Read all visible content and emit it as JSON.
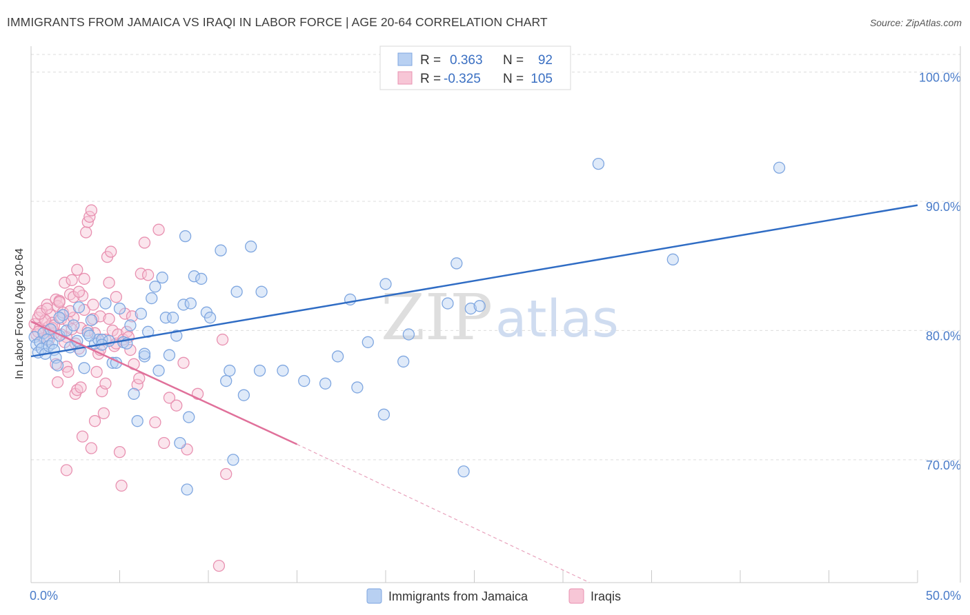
{
  "title": "IMMIGRANTS FROM JAMAICA VS IRAQI IN LABOR FORCE | AGE 20-64 CORRELATION CHART",
  "source": "Source: ZipAtlas.com",
  "watermark": {
    "part1": "ZIP",
    "part2": "atlas"
  },
  "legend_box": {
    "rows": [
      {
        "r_label": "R =",
        "r_value": "0.363",
        "n_label": "N =",
        "n_value": "92",
        "color": "#7ea6e0",
        "fill": "#b8d0f2"
      },
      {
        "r_label": "R =",
        "r_value": "-0.325",
        "n_label": "N =",
        "n_value": "105",
        "color": "#e890b0",
        "fill": "#f7c6d6"
      }
    ]
  },
  "chart_data": {
    "type": "scatter",
    "title": "IMMIGRANTS FROM JAMAICA VS IRAQI IN LABOR FORCE | AGE 20-64 CORRELATION CHART",
    "xlabel": "",
    "ylabel": "In Labor Force | Age 20-64",
    "xlim": [
      0,
      50
    ],
    "ylim": [
      60.5,
      102
    ],
    "x_tick_labels": [
      "0.0%",
      "50.0%"
    ],
    "y_ticks": [
      70,
      80,
      90,
      100
    ],
    "y_tick_labels": [
      "70.0%",
      "80.0%",
      "90.0%",
      "100.0%"
    ],
    "grid": true,
    "legend": "bottom-center",
    "series": [
      {
        "name": "Immigrants from Jamaica",
        "color": "#7ea6e0",
        "fill": "#b8d0f2",
        "trend": {
          "x": [
            0,
            50
          ],
          "y": [
            78.0,
            89.7
          ]
        },
        "points": [
          [
            0.2,
            79.5
          ],
          [
            0.3,
            78.9
          ],
          [
            0.4,
            78.3
          ],
          [
            0.5,
            79.1
          ],
          [
            0.6,
            78.6
          ],
          [
            0.7,
            79.8
          ],
          [
            0.8,
            78.2
          ],
          [
            0.9,
            79.3
          ],
          [
            1.0,
            78.8
          ],
          [
            1.1,
            80.1
          ],
          [
            1.2,
            79.0
          ],
          [
            1.3,
            78.5
          ],
          [
            1.4,
            77.9
          ],
          [
            1.5,
            77.3
          ],
          [
            1.6,
            79.6
          ],
          [
            1.8,
            81.2
          ],
          [
            2.0,
            80.0
          ],
          [
            2.2,
            78.7
          ],
          [
            2.4,
            80.4
          ],
          [
            2.6,
            79.2
          ],
          [
            2.8,
            78.4
          ],
          [
            3.0,
            77.1
          ],
          [
            3.2,
            79.8
          ],
          [
            3.4,
            80.8
          ],
          [
            3.6,
            79.0
          ],
          [
            3.8,
            79.3
          ],
          [
            4.0,
            79.3
          ],
          [
            4.2,
            82.1
          ],
          [
            4.4,
            79.2
          ],
          [
            4.6,
            77.5
          ],
          [
            4.8,
            77.5
          ],
          [
            5.0,
            81.7
          ],
          [
            5.2,
            79.1
          ],
          [
            5.4,
            79.0
          ],
          [
            5.6,
            80.4
          ],
          [
            5.8,
            75.1
          ],
          [
            6.0,
            73.0
          ],
          [
            6.2,
            81.3
          ],
          [
            6.4,
            78.0
          ],
          [
            6.6,
            79.9
          ],
          [
            6.8,
            82.5
          ],
          [
            7.0,
            83.4
          ],
          [
            7.2,
            76.9
          ],
          [
            7.4,
            84.1
          ],
          [
            7.6,
            81.0
          ],
          [
            7.8,
            78.1
          ],
          [
            8.0,
            81.0
          ],
          [
            8.2,
            79.6
          ],
          [
            8.4,
            71.3
          ],
          [
            8.6,
            82.0
          ],
          [
            8.7,
            87.3
          ],
          [
            8.9,
            73.3
          ],
          [
            9.0,
            82.1
          ],
          [
            9.2,
            84.2
          ],
          [
            9.6,
            84.0
          ],
          [
            9.9,
            81.4
          ],
          [
            10.1,
            81.0
          ],
          [
            10.7,
            86.2
          ],
          [
            11.0,
            76.1
          ],
          [
            11.2,
            76.9
          ],
          [
            11.4,
            70.0
          ],
          [
            11.6,
            83.0
          ],
          [
            12.0,
            75.0
          ],
          [
            12.4,
            86.5
          ],
          [
            12.9,
            76.9
          ],
          [
            13.0,
            83.0
          ],
          [
            14.2,
            76.9
          ],
          [
            15.4,
            76.1
          ],
          [
            16.6,
            75.9
          ],
          [
            17.3,
            78.0
          ],
          [
            18.0,
            82.4
          ],
          [
            18.4,
            75.6
          ],
          [
            19.0,
            79.1
          ],
          [
            19.9,
            73.5
          ],
          [
            20.0,
            83.6
          ],
          [
            21.0,
            77.6
          ],
          [
            21.3,
            79.7
          ],
          [
            23.5,
            82.1
          ],
          [
            24.0,
            85.2
          ],
          [
            24.4,
            69.1
          ],
          [
            24.8,
            81.7
          ],
          [
            25.3,
            81.9
          ],
          [
            26.8,
            99.8
          ],
          [
            32.0,
            92.9
          ],
          [
            36.2,
            85.5
          ],
          [
            42.2,
            92.6
          ],
          [
            8.8,
            67.7
          ],
          [
            4.0,
            78.9
          ],
          [
            2.7,
            81.8
          ],
          [
            1.6,
            81.0
          ],
          [
            3.3,
            79.6
          ],
          [
            6.4,
            78.2
          ]
        ]
      },
      {
        "name": "Iraqis",
        "color": "#e890b0",
        "fill": "#f7c6d6",
        "trend": {
          "x": [
            0,
            15
          ],
          "y": [
            80.7,
            71.2
          ]
        },
        "trend_dashed": {
          "x": [
            15,
            31.5
          ],
          "y": [
            71.2,
            60.5
          ]
        },
        "points": [
          [
            0.2,
            80.5
          ],
          [
            0.3,
            79.7
          ],
          [
            0.4,
            81.0
          ],
          [
            0.5,
            80.2
          ],
          [
            0.6,
            81.5
          ],
          [
            0.7,
            79.4
          ],
          [
            0.8,
            80.8
          ],
          [
            0.9,
            82.0
          ],
          [
            1.0,
            80.3
          ],
          [
            1.1,
            81.2
          ],
          [
            1.2,
            80.6
          ],
          [
            1.3,
            79.8
          ],
          [
            1.4,
            82.4
          ],
          [
            1.5,
            81.9
          ],
          [
            1.6,
            82.3
          ],
          [
            1.7,
            80.9
          ],
          [
            1.8,
            81.4
          ],
          [
            1.9,
            83.7
          ],
          [
            2.0,
            79.5
          ],
          [
            2.1,
            80.7
          ],
          [
            2.2,
            82.8
          ],
          [
            2.3,
            83.9
          ],
          [
            2.4,
            81.0
          ],
          [
            2.5,
            79.0
          ],
          [
            2.6,
            84.7
          ],
          [
            2.7,
            78.6
          ],
          [
            2.8,
            80.2
          ],
          [
            2.9,
            82.7
          ],
          [
            3.0,
            81.6
          ],
          [
            3.1,
            87.6
          ],
          [
            3.2,
            88.4
          ],
          [
            3.3,
            88.8
          ],
          [
            3.4,
            89.3
          ],
          [
            3.5,
            80.9
          ],
          [
            3.6,
            79.8
          ],
          [
            3.7,
            76.8
          ],
          [
            3.8,
            78.2
          ],
          [
            3.9,
            81.1
          ],
          [
            4.0,
            75.3
          ],
          [
            4.1,
            73.6
          ],
          [
            4.2,
            75.9
          ],
          [
            4.3,
            85.7
          ],
          [
            4.4,
            83.7
          ],
          [
            4.5,
            86.1
          ],
          [
            4.6,
            80.0
          ],
          [
            4.7,
            78.8
          ],
          [
            4.8,
            79.0
          ],
          [
            4.9,
            79.7
          ],
          [
            5.0,
            70.6
          ],
          [
            5.1,
            68.0
          ],
          [
            5.2,
            79.3
          ],
          [
            5.3,
            81.3
          ],
          [
            5.4,
            79.9
          ],
          [
            5.6,
            78.5
          ],
          [
            5.8,
            77.4
          ],
          [
            6.0,
            75.8
          ],
          [
            6.2,
            84.4
          ],
          [
            6.4,
            86.8
          ],
          [
            6.6,
            84.3
          ],
          [
            7.0,
            72.9
          ],
          [
            7.2,
            87.8
          ],
          [
            7.5,
            71.3
          ],
          [
            7.8,
            74.8
          ],
          [
            8.2,
            74.2
          ],
          [
            8.6,
            77.5
          ],
          [
            8.8,
            70.8
          ],
          [
            9.4,
            75.1
          ],
          [
            10.6,
            61.8
          ],
          [
            10.8,
            79.3
          ],
          [
            11.0,
            68.9
          ],
          [
            2.0,
            77.2
          ],
          [
            2.1,
            76.8
          ],
          [
            1.5,
            76.0
          ],
          [
            1.4,
            77.4
          ],
          [
            2.5,
            75.1
          ],
          [
            2.6,
            75.4
          ],
          [
            2.8,
            75.6
          ],
          [
            3.2,
            80.0
          ],
          [
            1.9,
            79.1
          ],
          [
            3.6,
            73.0
          ],
          [
            2.0,
            69.2
          ],
          [
            3.4,
            70.9
          ],
          [
            4.2,
            79.3
          ],
          [
            3.9,
            78.5
          ],
          [
            1.2,
            80.2
          ],
          [
            0.8,
            80.8
          ],
          [
            0.5,
            81.3
          ],
          [
            0.4,
            79.9
          ],
          [
            2.4,
            82.6
          ],
          [
            2.7,
            83.0
          ],
          [
            1.7,
            79.7
          ],
          [
            1.0,
            79.3
          ],
          [
            3.0,
            84.0
          ],
          [
            1.6,
            82.2
          ],
          [
            2.9,
            71.8
          ],
          [
            4.8,
            82.6
          ],
          [
            5.7,
            81.1
          ],
          [
            6.1,
            76.3
          ],
          [
            2.2,
            81.5
          ],
          [
            3.5,
            82.0
          ],
          [
            0.9,
            81.7
          ],
          [
            1.3,
            80.4
          ],
          [
            2.3,
            80.1
          ],
          [
            5.5,
            79.5
          ],
          [
            4.4,
            80.9
          ]
        ]
      }
    ]
  }
}
